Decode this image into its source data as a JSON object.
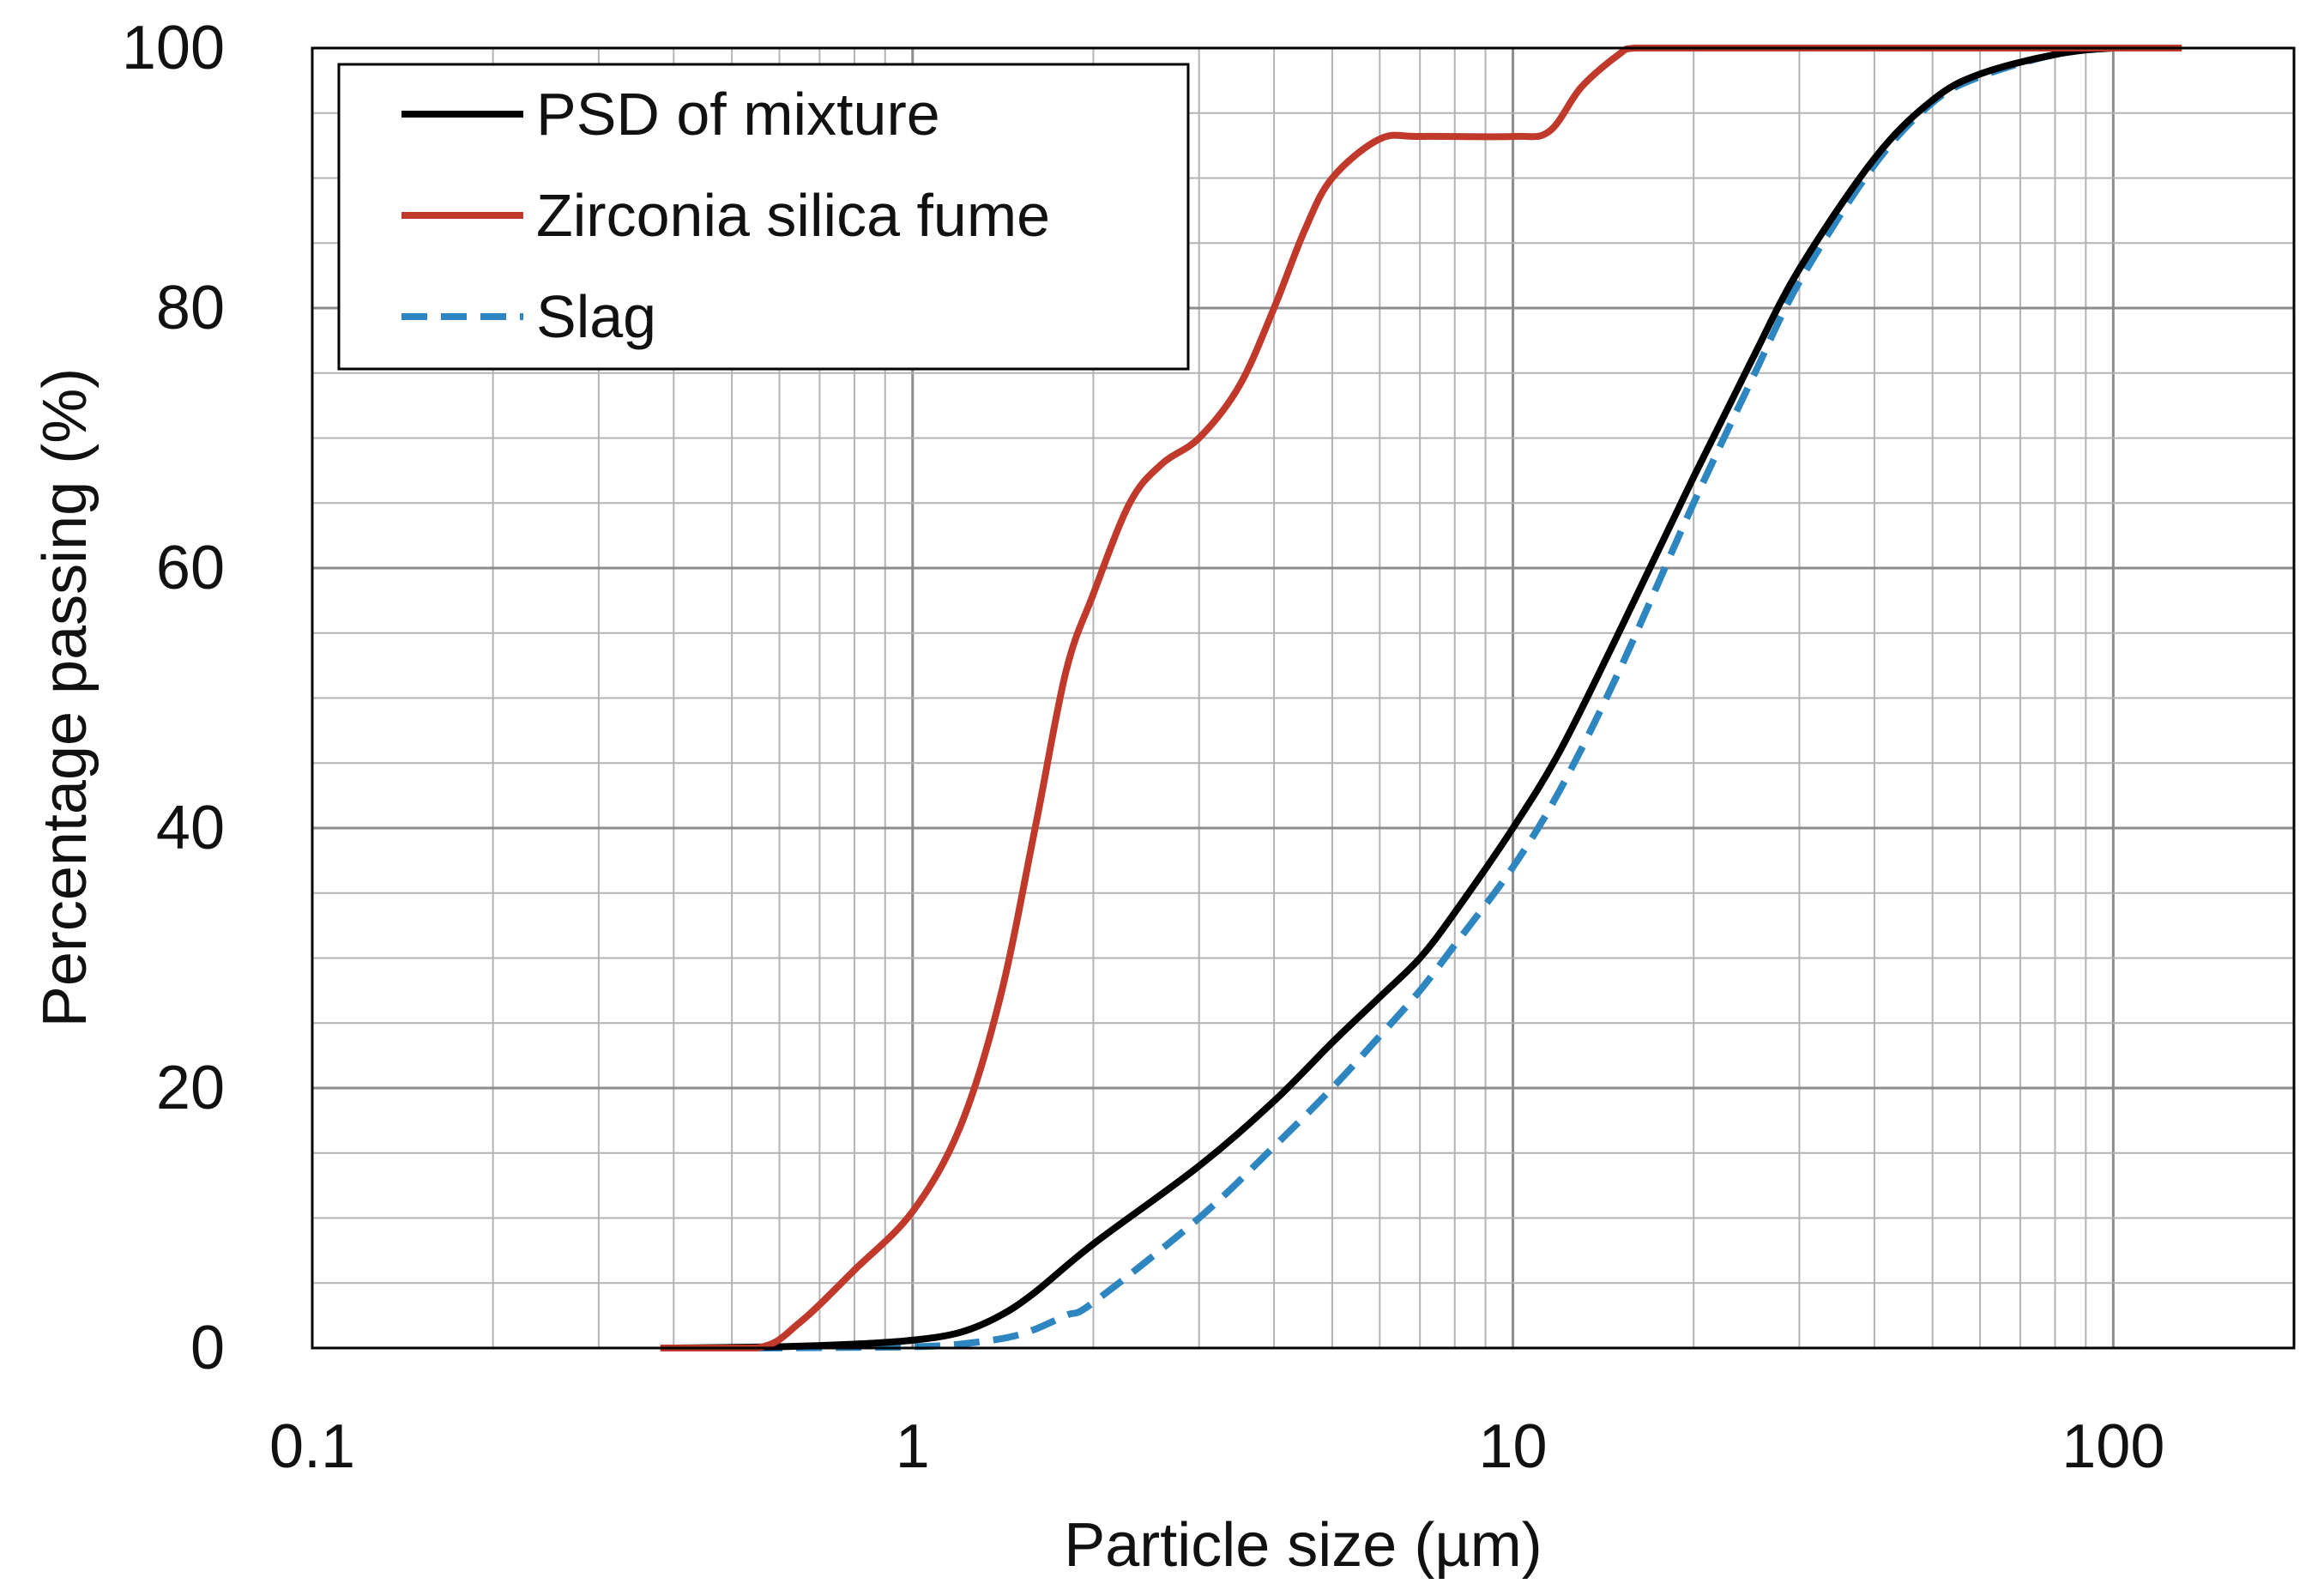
{
  "chart_data": {
    "type": "line",
    "title": "",
    "xlabel": "Particle size (µm)",
    "ylabel": "Percentage passing (%)",
    "xscale": "log",
    "xlim": [
      0.1,
      200
    ],
    "ylim": [
      0,
      100
    ],
    "x_ticks": [
      {
        "value": 0.1,
        "label": "0.1"
      },
      {
        "value": 1,
        "label": "1"
      },
      {
        "value": 10,
        "label": "10"
      },
      {
        "value": 100,
        "label": "100"
      }
    ],
    "y_ticks": [
      {
        "value": 0,
        "label": "0"
      },
      {
        "value": 20,
        "label": "20"
      },
      {
        "value": 40,
        "label": "40"
      },
      {
        "value": 60,
        "label": "60"
      },
      {
        "value": 80,
        "label": "80"
      },
      {
        "value": 100,
        "label": "100"
      }
    ],
    "y_minor_step": 5,
    "grid": true,
    "legend_position": "top-left",
    "series": [
      {
        "name": "PSD of mixture",
        "color": "#000000",
        "dash": "solid",
        "points": [
          [
            0.4,
            0
          ],
          [
            0.6,
            0.1
          ],
          [
            0.8,
            0.3
          ],
          [
            1.0,
            0.6
          ],
          [
            1.2,
            1.2
          ],
          [
            1.4,
            2.5
          ],
          [
            1.6,
            4.3
          ],
          [
            2.0,
            8.0
          ],
          [
            3.0,
            14.0
          ],
          [
            4.0,
            19.0
          ],
          [
            5.0,
            23.5
          ],
          [
            6.0,
            27.0
          ],
          [
            7.0,
            30.0
          ],
          [
            8.0,
            33.5
          ],
          [
            10.0,
            40.0
          ],
          [
            12.0,
            46.0
          ],
          [
            15.0,
            55.0
          ],
          [
            20.0,
            67.0
          ],
          [
            25.0,
            76.0
          ],
          [
            30.0,
            83.0
          ],
          [
            40.0,
            91.5
          ],
          [
            50.0,
            96.0
          ],
          [
            60.0,
            98.0
          ],
          [
            80.0,
            99.5
          ],
          [
            100.0,
            100
          ],
          [
            130.0,
            100
          ]
        ]
      },
      {
        "name": "Zirconia silica fume",
        "color": "#c0392b",
        "dash": "solid",
        "points": [
          [
            0.38,
            0
          ],
          [
            0.55,
            0
          ],
          [
            0.65,
            2.0
          ],
          [
            0.8,
            6.0
          ],
          [
            1.0,
            10.5
          ],
          [
            1.2,
            17.0
          ],
          [
            1.4,
            27.0
          ],
          [
            1.6,
            40.0
          ],
          [
            1.8,
            52.0
          ],
          [
            2.0,
            58.0
          ],
          [
            2.3,
            65.0
          ],
          [
            2.6,
            68.0
          ],
          [
            3.0,
            70.0
          ],
          [
            3.5,
            74.0
          ],
          [
            4.0,
            80.0
          ],
          [
            4.5,
            86.0
          ],
          [
            5.0,
            90.0
          ],
          [
            6.0,
            93.0
          ],
          [
            7.0,
            93.2
          ],
          [
            10.0,
            93.2
          ],
          [
            11.5,
            93.6
          ],
          [
            13.0,
            97.0
          ],
          [
            15.0,
            99.5
          ],
          [
            16.0,
            100
          ],
          [
            20.0,
            100
          ],
          [
            130.0,
            100
          ]
        ]
      },
      {
        "name": "Slag",
        "color": "#2e86c1",
        "dash": "dashed",
        "points": [
          [
            0.55,
            0
          ],
          [
            0.8,
            0.05
          ],
          [
            1.0,
            0.1
          ],
          [
            1.2,
            0.3
          ],
          [
            1.5,
            1.0
          ],
          [
            1.8,
            2.5
          ],
          [
            2.0,
            3.5
          ],
          [
            3.0,
            10.0
          ],
          [
            4.0,
            15.5
          ],
          [
            5.0,
            20.0
          ],
          [
            6.0,
            24.0
          ],
          [
            7.0,
            27.5
          ],
          [
            8.0,
            31.0
          ],
          [
            10.0,
            37.0
          ],
          [
            12.0,
            43.0
          ],
          [
            15.0,
            52.0
          ],
          [
            20.0,
            65.0
          ],
          [
            25.0,
            74.5
          ],
          [
            30.0,
            82.0
          ],
          [
            40.0,
            91.0
          ],
          [
            50.0,
            95.8
          ],
          [
            60.0,
            97.8
          ],
          [
            80.0,
            99.5
          ],
          [
            100.0,
            100
          ],
          [
            130.0,
            100
          ]
        ]
      }
    ]
  }
}
